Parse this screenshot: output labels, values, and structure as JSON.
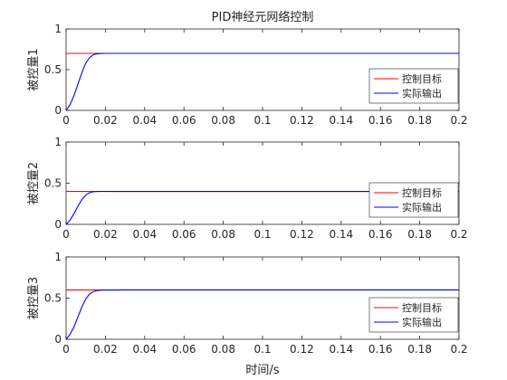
{
  "figure": {
    "title": "PID神经元网络控制",
    "xlabel": "时间/s"
  },
  "legend_labels": [
    "控制目标",
    "实际输出"
  ],
  "chart_data": [
    {
      "type": "line",
      "ylabel": "被控量1",
      "xlim": [
        0,
        0.2
      ],
      "ylim": [
        0,
        1
      ],
      "xticks": [
        "0",
        "0.02",
        "0.04",
        "0.06",
        "0.08",
        "0.1",
        "0.12",
        "0.14",
        "0.16",
        "0.18",
        "0.2"
      ],
      "yticks": [
        "0",
        "0.5",
        "1"
      ],
      "legend": "bottom-right",
      "series": [
        {
          "name": "控制目标",
          "color": "#ff0000",
          "x": [
            0.0,
            0.007,
            0.2
          ],
          "y": [
            0.7,
            0.7,
            0.7
          ]
        },
        {
          "name": "实际输出",
          "color": "#0000ff",
          "x": [
            0.0,
            0.002,
            0.004,
            0.006,
            0.008,
            0.01,
            0.012,
            0.014,
            0.016,
            0.018,
            0.02,
            0.025,
            0.03,
            0.04,
            0.05,
            0.2
          ],
          "y": [
            0.0,
            0.07,
            0.18,
            0.32,
            0.46,
            0.58,
            0.65,
            0.685,
            0.695,
            0.699,
            0.7,
            0.7,
            0.7,
            0.7,
            0.7,
            0.7
          ]
        }
      ]
    },
    {
      "type": "line",
      "ylabel": "被控量2",
      "xlim": [
        0,
        0.2
      ],
      "ylim": [
        0,
        1
      ],
      "xticks": [
        "0",
        "0.02",
        "0.04",
        "0.06",
        "0.08",
        "0.1",
        "0.12",
        "0.14",
        "0.16",
        "0.18",
        "0.2"
      ],
      "yticks": [
        "0",
        "0.5",
        "1"
      ],
      "legend": "bottom-right",
      "series": [
        {
          "name": "控制目标",
          "color": "#ff0000",
          "x": [
            0.0,
            0.005,
            0.2
          ],
          "y": [
            0.4,
            0.4,
            0.4
          ]
        },
        {
          "name": "实际输出",
          "color": "#0000ff",
          "x": [
            0.0,
            0.002,
            0.004,
            0.006,
            0.008,
            0.01,
            0.012,
            0.014,
            0.016,
            0.018,
            0.02,
            0.03,
            0.05,
            0.2
          ],
          "y": [
            0.0,
            0.05,
            0.13,
            0.22,
            0.3,
            0.355,
            0.385,
            0.397,
            0.4,
            0.401,
            0.401,
            0.4,
            0.4,
            0.4
          ]
        }
      ]
    },
    {
      "type": "line",
      "ylabel": "被控量3",
      "xlim": [
        0,
        0.2
      ],
      "ylim": [
        0,
        1
      ],
      "xticks": [
        "0",
        "0.02",
        "0.04",
        "0.06",
        "0.08",
        "0.1",
        "0.12",
        "0.14",
        "0.16",
        "0.18",
        "0.2"
      ],
      "yticks": [
        "0",
        "0.5",
        "1"
      ],
      "legend": "bottom-right",
      "series": [
        {
          "name": "控制目标",
          "color": "#ff0000",
          "x": [
            0.0,
            0.007,
            0.2
          ],
          "y": [
            0.6,
            0.6,
            0.6
          ]
        },
        {
          "name": "实际输出",
          "color": "#0000ff",
          "x": [
            0.0,
            0.002,
            0.004,
            0.006,
            0.008,
            0.01,
            0.012,
            0.014,
            0.016,
            0.018,
            0.02,
            0.025,
            0.03,
            0.05,
            0.2
          ],
          "y": [
            0.0,
            0.06,
            0.15,
            0.27,
            0.39,
            0.49,
            0.55,
            0.58,
            0.592,
            0.597,
            0.598,
            0.598,
            0.6,
            0.6,
            0.6
          ]
        }
      ]
    }
  ]
}
